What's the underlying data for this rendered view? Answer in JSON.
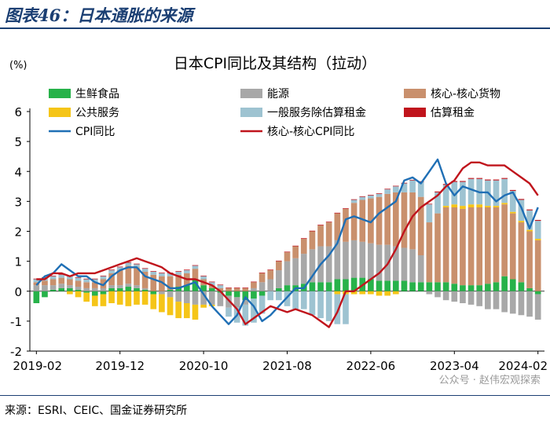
{
  "header": {
    "title": "图表46：日本通胀的来源"
  },
  "source": "来源：ESRI、CEIC、国金证券研究所",
  "watermark": "公众号 · 赵伟宏观探索",
  "chart_data": {
    "type": "bar+line",
    "title": "日本CPI同比及其结构（拉动）",
    "ylabel": "(%)",
    "ylim": [
      -2,
      6
    ],
    "yticks": [
      -2,
      -1,
      0,
      1,
      2,
      3,
      4,
      5,
      6
    ],
    "x_tick_labels": [
      "2019-02",
      "2019-12",
      "2020-10",
      "2021-08",
      "2022-06",
      "2023-04",
      "2024-02"
    ],
    "x_tick_index": [
      0,
      10,
      20,
      30,
      40,
      50,
      60
    ],
    "n_periods": 61,
    "legend": [
      {
        "name": "生鲜食品",
        "color": "#27b24a",
        "kind": "bar"
      },
      {
        "name": "能源",
        "color": "#a8a8a8",
        "kind": "bar"
      },
      {
        "name": "核心-核心货物",
        "color": "#c9906d",
        "kind": "bar"
      },
      {
        "name": "公共服务",
        "color": "#f5c518",
        "kind": "bar"
      },
      {
        "name": "一般服务除估算租金",
        "color": "#9ec3d1",
        "kind": "bar"
      },
      {
        "name": "估算租金",
        "color": "#c0141c",
        "kind": "bar"
      },
      {
        "name": "CPI同比",
        "color": "#1f6fb5",
        "kind": "line"
      },
      {
        "name": "核心-核心CPI同比",
        "color": "#c0141c",
        "kind": "line"
      }
    ],
    "series": [
      {
        "name": "生鲜食品",
        "values": [
          -0.4,
          -0.2,
          0.05,
          0.1,
          0.1,
          0.05,
          -0.05,
          -0.15,
          -0.1,
          0.1,
          0.1,
          0.15,
          0.1,
          0.05,
          -0.1,
          0.0,
          0.05,
          0.15,
          0.2,
          0.4,
          0.2,
          0.1,
          -0.05,
          -0.15,
          -0.2,
          -0.3,
          -0.25,
          -0.15,
          0.0,
          0.1,
          0.2,
          0.2,
          0.25,
          0.3,
          0.3,
          0.3,
          0.4,
          0.4,
          0.45,
          0.45,
          0.4,
          0.35,
          0.35,
          0.35,
          0.35,
          0.3,
          0.3,
          0.3,
          0.3,
          0.3,
          0.25,
          0.2,
          0.2,
          0.2,
          0.25,
          0.3,
          0.5,
          0.4,
          0.3,
          0.1,
          -0.1
        ]
      },
      {
        "name": "能源",
        "values": [
          0.2,
          0.2,
          0.15,
          0.15,
          0.1,
          0.1,
          0.1,
          0.1,
          0.1,
          0.1,
          0.1,
          0.1,
          0.1,
          0.05,
          0.0,
          -0.1,
          -0.2,
          -0.35,
          -0.4,
          -0.45,
          -0.45,
          -0.45,
          -0.45,
          -0.4,
          -0.35,
          -0.15,
          0.1,
          0.3,
          0.4,
          0.6,
          0.8,
          0.9,
          1.0,
          1.1,
          1.2,
          1.2,
          1.3,
          1.25,
          1.25,
          1.2,
          1.2,
          1.2,
          1.2,
          1.15,
          1.1,
          1.1,
          0.9,
          -0.1,
          -0.2,
          -0.3,
          -0.35,
          -0.4,
          -0.45,
          -0.5,
          -0.6,
          -0.6,
          -0.7,
          -0.75,
          -0.8,
          -0.85,
          -0.85
        ]
      },
      {
        "name": "核心-核心货物",
        "values": [
          0.1,
          0.15,
          0.2,
          0.2,
          0.2,
          0.2,
          0.2,
          0.2,
          0.3,
          0.4,
          0.5,
          0.6,
          0.6,
          0.55,
          0.55,
          0.5,
          0.45,
          0.4,
          0.4,
          0.35,
          0.2,
          0.1,
          0.1,
          0.1,
          0.1,
          0.1,
          0.2,
          0.3,
          0.3,
          0.3,
          0.3,
          0.4,
          0.5,
          0.6,
          0.7,
          0.8,
          0.9,
          1.1,
          1.25,
          1.4,
          1.5,
          1.6,
          1.7,
          1.8,
          1.85,
          1.9,
          1.95,
          2.0,
          2.3,
          2.5,
          2.55,
          2.55,
          2.6,
          2.6,
          2.55,
          2.5,
          2.4,
          2.2,
          2.0,
          1.9,
          1.7
        ]
      },
      {
        "name": "公共服务",
        "values": [
          0.0,
          0.0,
          0.0,
          0.0,
          -0.1,
          -0.2,
          -0.3,
          -0.35,
          -0.4,
          -0.4,
          -0.45,
          -0.5,
          -0.45,
          -0.45,
          -0.5,
          -0.6,
          -0.6,
          -0.55,
          -0.5,
          -0.5,
          -0.1,
          -0.05,
          0.0,
          0.0,
          0.0,
          0.0,
          0.0,
          0.0,
          0.0,
          0.0,
          0.0,
          0.0,
          0.0,
          0.0,
          0.0,
          0.0,
          -0.1,
          -0.1,
          -0.1,
          -0.1,
          -0.1,
          -0.15,
          -0.15,
          -0.1,
          0.0,
          0.0,
          0.0,
          0.0,
          0.0,
          0.05,
          0.1,
          0.1,
          0.1,
          0.1,
          0.05,
          0.05,
          0.05,
          0.05,
          0.05,
          0.05,
          0.05
        ]
      },
      {
        "name": "一般服务除估算租金",
        "values": [
          0.1,
          0.1,
          0.1,
          0.1,
          0.1,
          0.1,
          0.1,
          0.1,
          0.1,
          0.1,
          0.1,
          0.1,
          0.1,
          0.1,
          0.1,
          0.1,
          0.1,
          0.1,
          0.1,
          0.1,
          0.1,
          0.1,
          0.1,
          -0.3,
          -0.5,
          -0.7,
          -0.8,
          -0.6,
          -0.3,
          -0.3,
          -0.5,
          -0.6,
          -0.6,
          -0.8,
          -0.9,
          -1.0,
          -1.0,
          -1.0,
          0.1,
          0.1,
          0.1,
          0.1,
          0.15,
          0.2,
          0.3,
          0.4,
          0.5,
          0.6,
          0.7,
          0.7,
          0.75,
          0.8,
          0.85,
          0.85,
          0.85,
          0.85,
          0.8,
          0.7,
          0.7,
          0.65,
          0.6
        ]
      },
      {
        "name": "估算租金",
        "values": [
          0.02,
          0.02,
          0.02,
          0.02,
          0.02,
          0.02,
          0.02,
          0.02,
          0.02,
          0.02,
          0.02,
          0.02,
          0.02,
          0.02,
          0.02,
          0.02,
          0.02,
          0.02,
          0.02,
          0.02,
          0.02,
          0.02,
          0.02,
          0.02,
          0.02,
          0.02,
          0.02,
          0.02,
          0.02,
          0.02,
          0.02,
          0.02,
          0.02,
          0.02,
          0.02,
          0.02,
          0.02,
          0.02,
          0.02,
          0.02,
          0.02,
          0.02,
          0.02,
          0.02,
          0.02,
          0.02,
          0.02,
          0.02,
          0.03,
          0.03,
          0.03,
          0.03,
          0.03,
          0.03,
          0.03,
          0.03,
          0.03,
          0.03,
          0.03,
          0.03,
          0.03
        ]
      },
      {
        "name": "CPI同比",
        "kind": "line",
        "values": [
          0.2,
          0.5,
          0.6,
          0.9,
          0.7,
          0.5,
          0.5,
          0.3,
          0.2,
          0.5,
          0.7,
          0.8,
          0.8,
          0.5,
          0.4,
          0.3,
          0.1,
          0.1,
          0.2,
          0.3,
          -0.1,
          -0.5,
          -0.8,
          -1.1,
          -0.8,
          -0.2,
          -0.5,
          -1.0,
          -0.8,
          -0.5,
          -0.2,
          0.1,
          0.1,
          0.5,
          0.9,
          1.2,
          1.6,
          2.4,
          2.5,
          2.4,
          2.3,
          2.6,
          2.8,
          3.0,
          3.7,
          3.8,
          3.6,
          4.0,
          4.4,
          3.6,
          3.2,
          3.5,
          3.4,
          3.3,
          3.3,
          3.0,
          3.2,
          3.3,
          2.8,
          2.1,
          2.8
        ]
      },
      {
        "name": "核心-核心CPI同比",
        "kind": "line",
        "values": [
          0.4,
          0.4,
          0.6,
          0.6,
          0.5,
          0.6,
          0.6,
          0.6,
          0.7,
          0.8,
          0.9,
          1.0,
          1.1,
          1.0,
          0.9,
          0.8,
          0.6,
          0.5,
          0.4,
          0.4,
          0.3,
          0.2,
          0.0,
          -0.3,
          -0.6,
          -1.1,
          -0.9,
          -0.7,
          -0.5,
          -0.6,
          -0.7,
          -0.6,
          -0.7,
          -0.8,
          -1.0,
          -1.2,
          -0.7,
          0.0,
          0.0,
          0.2,
          0.4,
          0.6,
          0.9,
          1.4,
          2.0,
          2.5,
          2.8,
          3.0,
          3.2,
          3.5,
          3.7,
          4.1,
          4.3,
          4.3,
          4.2,
          4.2,
          4.2,
          4.0,
          3.8,
          3.6,
          3.2
        ]
      }
    ]
  }
}
